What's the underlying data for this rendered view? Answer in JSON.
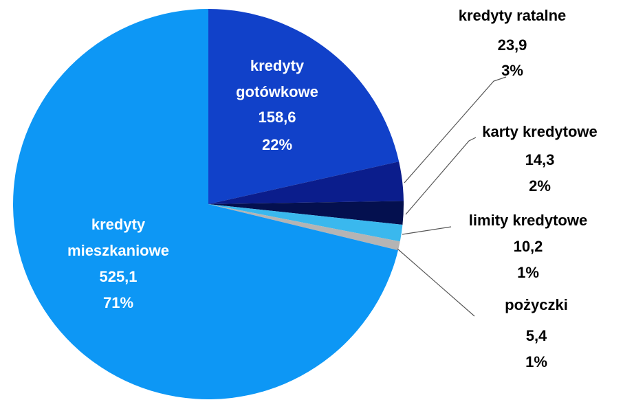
{
  "chart_data": {
    "type": "pie",
    "categories": [
      "kredyty gotówkowe",
      "kredyty ratalne",
      "karty kredytowe",
      "limity kredytowe",
      "pożyczki",
      "kredyty mieszkaniowe"
    ],
    "values": [
      158.6,
      23.9,
      14.3,
      10.2,
      5.4,
      525.1
    ],
    "value_labels": [
      "158,6",
      "23,9",
      "14,3",
      "10,2",
      "5,4",
      "525,1"
    ],
    "percent_labels": [
      "22%",
      "3%",
      "2%",
      "1%",
      "1%",
      "71%"
    ],
    "colors": [
      "#1141c9",
      "#0b1d8c",
      "#04104f",
      "#3ab8ee",
      "#b4b4b4",
      "#0d97f5"
    ]
  }
}
